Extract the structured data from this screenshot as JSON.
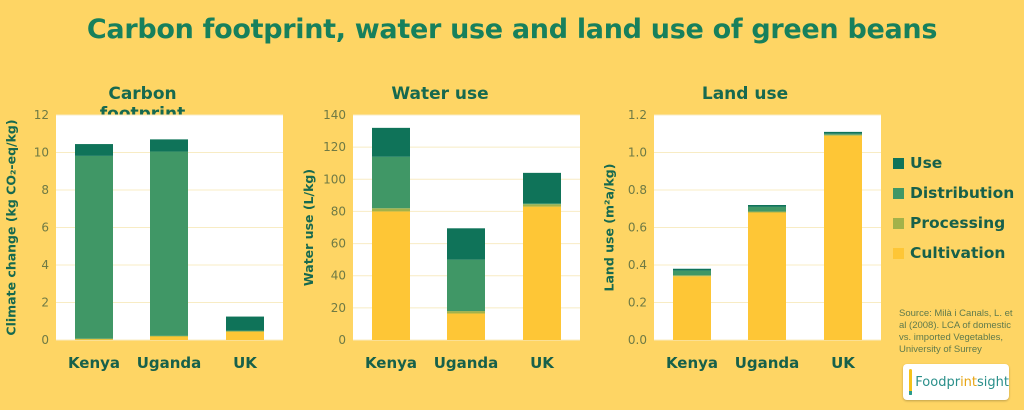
{
  "title": "Carbon footprint, water use and land use of green beans",
  "colors": {
    "Use": "#0f7359",
    "Distribution": "#409766",
    "Processing": "#a3b24a",
    "Cultivation": "#fec636",
    "background": "#fed564"
  },
  "legend": [
    "Use",
    "Distribution",
    "Processing",
    "Cultivation"
  ],
  "source": "Source: Milà i Canals, L. et al (2008). LCA of domestic vs. imported Vegetables, University of Surrey",
  "logo": {
    "part1": "Foodpr",
    "part2": "int",
    "part3": "sight"
  },
  "chart_data": [
    {
      "type": "bar",
      "stacked": true,
      "title": "Carbon footprint",
      "ylabel": "Climate change (kg CO₂-eq/kg)",
      "categories": [
        "Kenya",
        "Uganda",
        "UK"
      ],
      "ylim": [
        0,
        12
      ],
      "yticks": [
        "0",
        "2",
        "4",
        "6",
        "8",
        "10",
        "12"
      ],
      "grid": true,
      "series": [
        {
          "name": "Cultivation",
          "values": [
            0.05,
            0.2,
            0.45
          ]
        },
        {
          "name": "Processing",
          "values": [
            0.02,
            0.02,
            0.03
          ]
        },
        {
          "name": "Distribution",
          "values": [
            9.75,
            9.83,
            0.02
          ]
        },
        {
          "name": "Use",
          "values": [
            0.63,
            0.65,
            0.75
          ]
        }
      ]
    },
    {
      "type": "bar",
      "stacked": true,
      "title": "Water use",
      "ylabel": "Water use (L/kg)",
      "categories": [
        "Kenya",
        "Uganda",
        "UK"
      ],
      "ylim": [
        0,
        140
      ],
      "yticks": [
        "0",
        "20",
        "40",
        "60",
        "80",
        "100",
        "120",
        "140"
      ],
      "grid": true,
      "series": [
        {
          "name": "Cultivation",
          "values": [
            80,
            16.5,
            83
          ]
        },
        {
          "name": "Processing",
          "values": [
            2,
            1.5,
            1.5
          ]
        },
        {
          "name": "Distribution",
          "values": [
            32,
            32,
            0.5
          ]
        },
        {
          "name": "Use",
          "values": [
            18,
            19.5,
            19
          ]
        }
      ]
    },
    {
      "type": "bar",
      "stacked": true,
      "title": "Land use",
      "ylabel": "Land use (m²a/kg)",
      "categories": [
        "Kenya",
        "Uganda",
        "UK"
      ],
      "ylim": [
        0,
        1.2
      ],
      "yticks": [
        "0.0",
        "0.2",
        "0.4",
        "0.6",
        "0.8",
        "1.0",
        "1.2"
      ],
      "grid": true,
      "series": [
        {
          "name": "Cultivation",
          "values": [
            0.34,
            0.68,
            1.09
          ]
        },
        {
          "name": "Processing",
          "values": [
            0.005,
            0.005,
            0.005
          ]
        },
        {
          "name": "Distribution",
          "values": [
            0.025,
            0.025,
            0.005
          ]
        },
        {
          "name": "Use",
          "values": [
            0.01,
            0.01,
            0.01
          ]
        }
      ]
    }
  ]
}
